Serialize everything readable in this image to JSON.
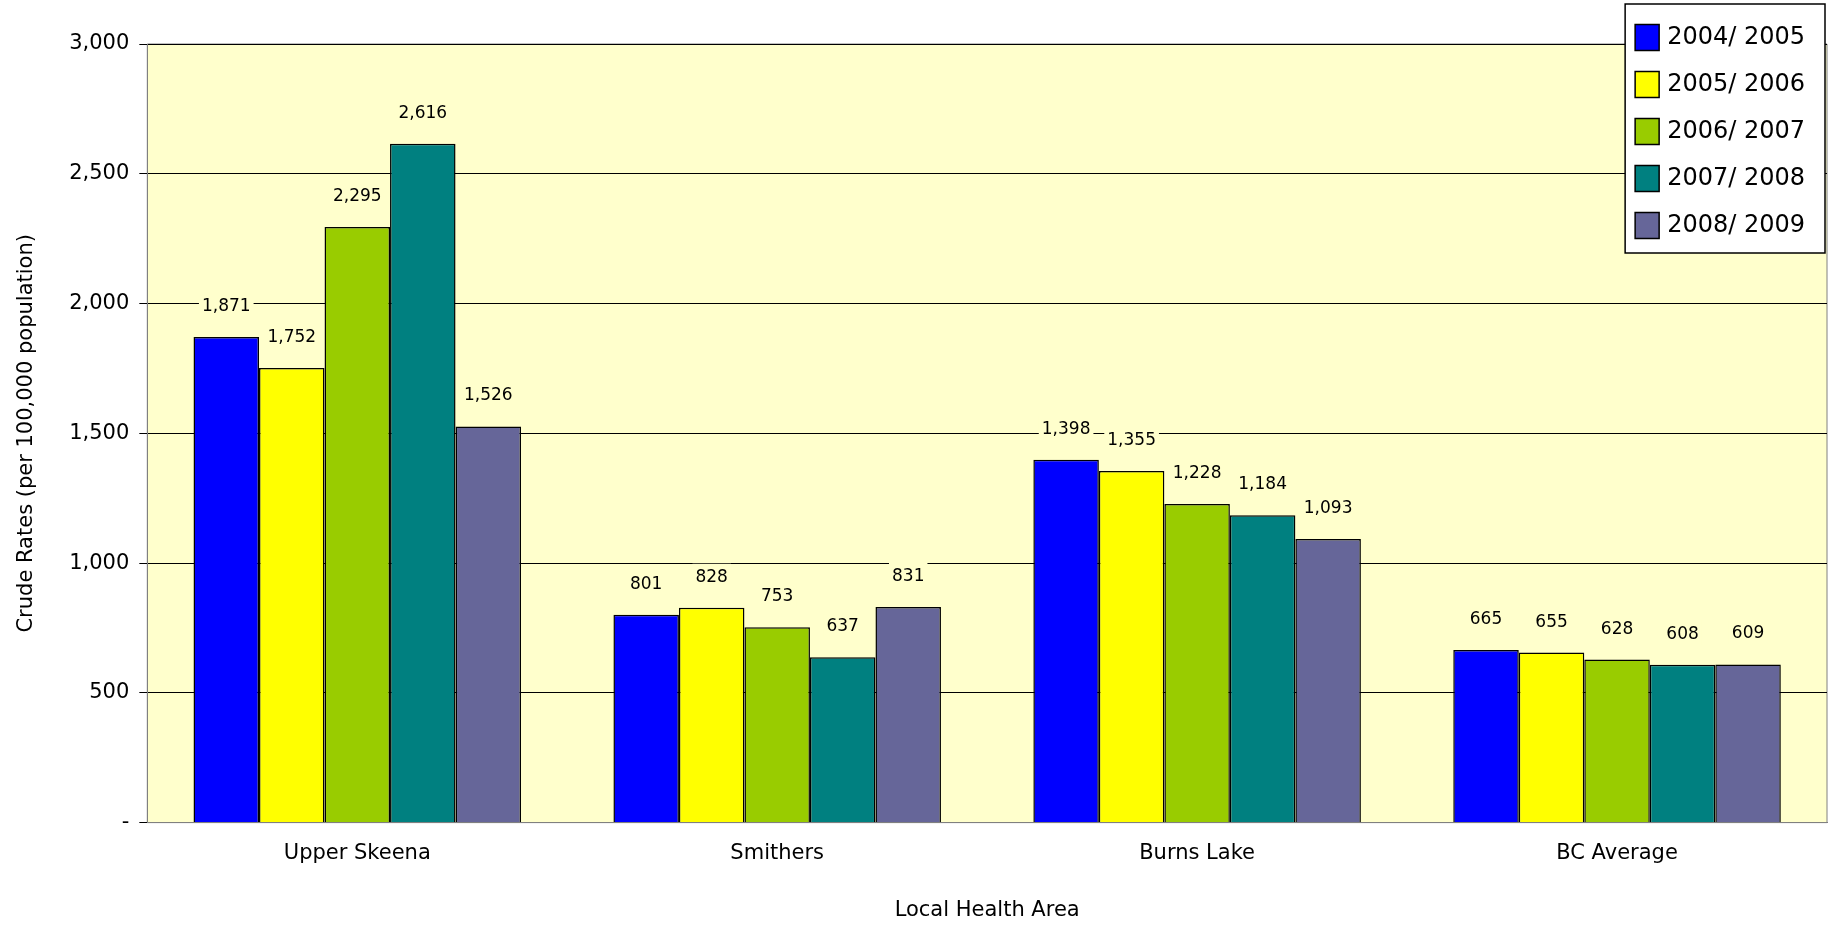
{
  "chart_data": {
    "type": "bar",
    "xlabel": "Local Health Area",
    "ylabel": "Crude Rates (per 100,000 population)",
    "categories": [
      "Upper Skeena",
      "Smithers",
      "Burns Lake",
      "BC Average"
    ],
    "series": [
      {
        "name": "2004/ 2005",
        "color": "#0000ff",
        "values": [
          1871,
          801,
          1398,
          665
        ],
        "value_labels": [
          "1,871",
          "801",
          "1,398",
          "665"
        ]
      },
      {
        "name": "2005/ 2006",
        "color": "#ffff00",
        "values": [
          1752,
          828,
          1355,
          655
        ],
        "value_labels": [
          "1,752",
          "828",
          "1,355",
          "655"
        ]
      },
      {
        "name": "2006/ 2007",
        "color": "#99cc00",
        "values": [
          2295,
          753,
          1228,
          628
        ],
        "value_labels": [
          "2,295",
          "753",
          "1,228",
          "628"
        ]
      },
      {
        "name": "2007/ 2008",
        "color": "#008080",
        "values": [
          2616,
          637,
          1184,
          608
        ],
        "value_labels": [
          "2,616",
          "637",
          "1,184",
          "608"
        ]
      },
      {
        "name": "2008/ 2009",
        "color": "#666699",
        "values": [
          1526,
          831,
          1093,
          609
        ],
        "value_labels": [
          "1,526",
          "831",
          "1,093",
          "609"
        ]
      }
    ],
    "ylim": [
      0,
      3000
    ],
    "yticks": [
      {
        "value": 0,
        "label": "-"
      },
      500,
      {
        "value": 1000,
        "label": "1,000"
      },
      {
        "value": 1500,
        "label": "1,500"
      },
      {
        "value": 2000,
        "label": "2,000"
      },
      {
        "value": 2500,
        "label": "2,500"
      },
      {
        "value": 3000,
        "label": "3,000"
      }
    ],
    "grid": "y",
    "legend": "top right"
  }
}
